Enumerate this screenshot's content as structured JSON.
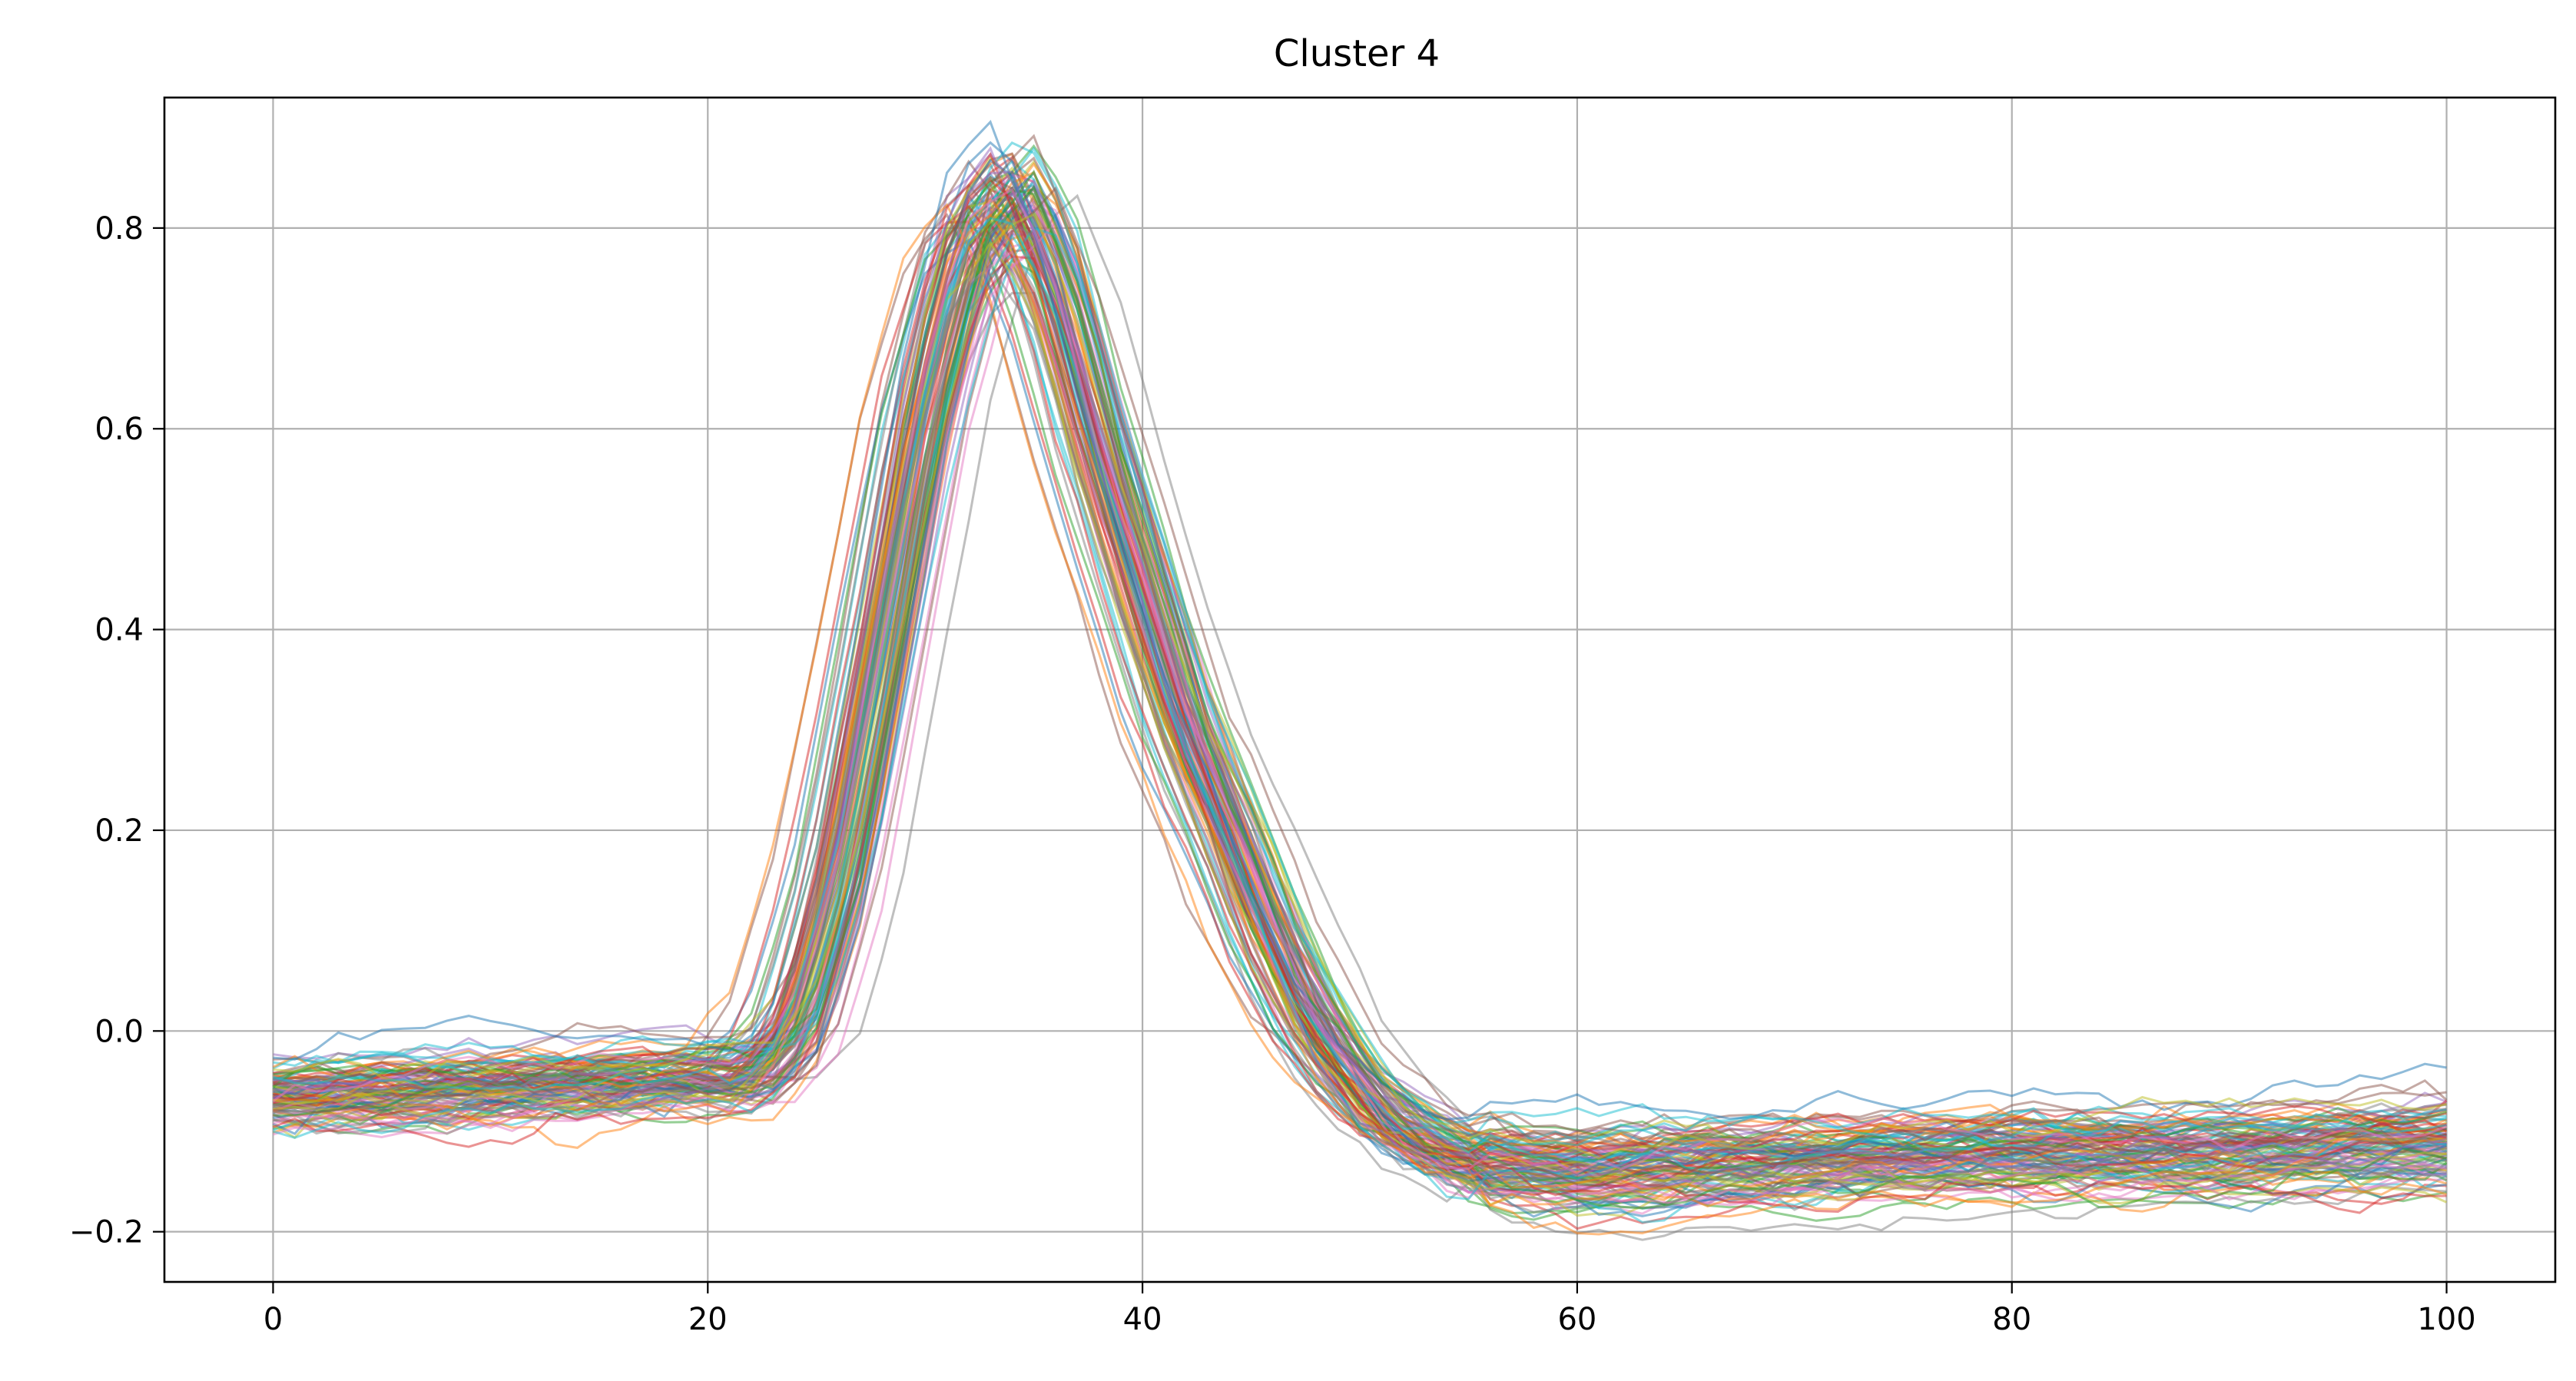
{
  "chart_data": {
    "type": "line",
    "title": "Cluster 4",
    "xlabel": "",
    "ylabel": "",
    "xlim": [
      -5,
      105
    ],
    "ylim": [
      -0.25,
      0.93
    ],
    "xticks": [
      0,
      20,
      40,
      60,
      80,
      100
    ],
    "yticks": [
      -0.2,
      0.0,
      0.2,
      0.4,
      0.6,
      0.8
    ],
    "xtick_labels": [
      "0",
      "20",
      "40",
      "60",
      "80",
      "100"
    ],
    "ytick_labels": [
      "−0.2",
      "0.0",
      "0.2",
      "0.4",
      "0.6",
      "0.8"
    ],
    "grid": true,
    "legend": "none",
    "line_alpha": 0.5,
    "series_count": 120,
    "representative_series": {
      "x": [
        0,
        5,
        10,
        15,
        20,
        22,
        24,
        26,
        28,
        30,
        32,
        34,
        36,
        38,
        40,
        42,
        44,
        46,
        48,
        50,
        52,
        55,
        60,
        65,
        70,
        75,
        80,
        85,
        90,
        95,
        100
      ],
      "y": [
        -0.065,
        -0.062,
        -0.058,
        -0.052,
        -0.048,
        -0.05,
        0.0,
        0.15,
        0.38,
        0.62,
        0.79,
        0.84,
        0.74,
        0.58,
        0.44,
        0.3,
        0.2,
        0.09,
        0.0,
        -0.06,
        -0.1,
        -0.13,
        -0.14,
        -0.135,
        -0.13,
        -0.125,
        -0.12,
        -0.12,
        -0.12,
        -0.115,
        -0.11
      ]
    },
    "colors": [
      "#1f77b4",
      "#ff7f0e",
      "#2ca02c",
      "#d62728",
      "#9467bd",
      "#8c564b",
      "#e377c2",
      "#7f7f7f",
      "#bcbd22",
      "#17becf"
    ]
  }
}
